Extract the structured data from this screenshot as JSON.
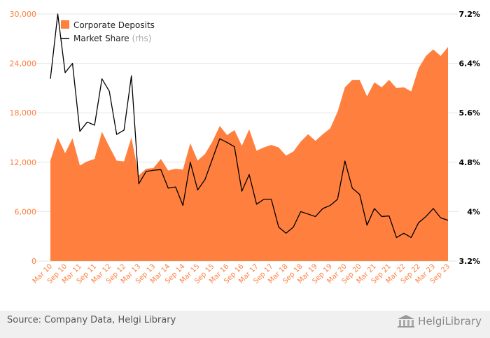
{
  "chart_data": {
    "type": "area",
    "source": "Source: Company Data, Helgi Library",
    "logo_text": "HelgiLibrary",
    "legend": [
      {
        "name": "Corporate Deposits",
        "color": "#ff7f3f",
        "kind": "area"
      },
      {
        "name": "Market Share",
        "suffix": "(rhs)",
        "color": "#000000",
        "kind": "line"
      }
    ],
    "left_axis": {
      "min": 0,
      "max": 30000,
      "ticks": [
        "0",
        "6,000",
        "12,000",
        "18,000",
        "24,000",
        "30,000"
      ],
      "tick_values": [
        0,
        6000,
        12000,
        18000,
        24000,
        30000
      ],
      "color": "#ff7f3f"
    },
    "right_axis": {
      "min": 3.2,
      "max": 7.2,
      "ticks": [
        "3.2%",
        "4%",
        "4.8%",
        "5.6%",
        "6.4%",
        "7.2%"
      ],
      "tick_values": [
        3.2,
        4.0,
        4.8,
        5.6,
        6.4,
        7.2
      ],
      "color": "#000000"
    },
    "x_labels": [
      "Mar 10",
      "Sep 10",
      "Mar 11",
      "Sep 11",
      "Mar 12",
      "Sep 12",
      "Mar 13",
      "Sep 13",
      "Mar 14",
      "Sep 14",
      "Mar 15",
      "Sep 15",
      "Mar 16",
      "Sep 16",
      "Mar 17",
      "Sep 17",
      "Mar 18",
      "Sep 18",
      "Mar 19",
      "Sep 19",
      "Mar 20",
      "Sep 20",
      "Mar 21",
      "Sep 21",
      "Mar 22",
      "Sep 22",
      "Mar 23",
      "Sep 23"
    ],
    "x": [
      "Mar 10",
      "Jun 10",
      "Sep 10",
      "Dec 10",
      "Mar 11",
      "Jun 11",
      "Sep 11",
      "Dec 11",
      "Mar 12",
      "Jun 12",
      "Sep 12",
      "Dec 12",
      "Mar 13",
      "Jun 13",
      "Sep 13",
      "Dec 13",
      "Mar 14",
      "Jun 14",
      "Sep 14",
      "Dec 14",
      "Mar 15",
      "Jun 15",
      "Sep 15",
      "Dec 15",
      "Mar 16",
      "Jun 16",
      "Sep 16",
      "Dec 16",
      "Mar 17",
      "Jun 17",
      "Sep 17",
      "Dec 17",
      "Mar 18",
      "Jun 18",
      "Sep 18",
      "Dec 18",
      "Mar 19",
      "Jun 19",
      "Sep 19",
      "Dec 19",
      "Mar 20",
      "Jun 20",
      "Sep 20",
      "Dec 20",
      "Mar 21",
      "Jun 21",
      "Sep 21",
      "Dec 21",
      "Mar 22",
      "Jun 22",
      "Sep 22",
      "Dec 22",
      "Mar 23",
      "Jun 23",
      "Sep 23"
    ],
    "series": [
      {
        "name": "Corporate Deposits",
        "axis": "left",
        "values": [
          12200,
          15000,
          13100,
          14900,
          11600,
          12100,
          12400,
          15700,
          13900,
          12200,
          12100,
          15000,
          10400,
          11200,
          11300,
          12400,
          11000,
          11200,
          11100,
          14300,
          12200,
          13000,
          14500,
          16400,
          15300,
          15900,
          14000,
          16000,
          13400,
          13800,
          14100,
          13800,
          12800,
          13300,
          14500,
          15400,
          14600,
          15400,
          16100,
          18100,
          21100,
          22000,
          22000,
          20000,
          21700,
          21100,
          22000,
          21000,
          21100,
          20600,
          23400,
          24900,
          25700,
          24900,
          26000
        ]
      },
      {
        "name": "Market Share",
        "axis": "right",
        "values": [
          6.15,
          7.2,
          6.25,
          6.4,
          5.3,
          5.45,
          5.4,
          6.15,
          5.95,
          5.25,
          5.32,
          6.2,
          4.45,
          4.65,
          4.67,
          4.68,
          4.38,
          4.4,
          4.1,
          4.8,
          4.35,
          4.52,
          4.85,
          5.18,
          5.12,
          5.05,
          4.33,
          4.6,
          4.12,
          4.2,
          4.2,
          3.75,
          3.65,
          3.75,
          4.0,
          3.96,
          3.92,
          4.05,
          4.1,
          4.2,
          4.82,
          4.38,
          4.28,
          3.78,
          4.05,
          3.92,
          3.93,
          3.58,
          3.65,
          3.58,
          3.82,
          3.92,
          4.05,
          3.9,
          3.86
        ]
      }
    ]
  }
}
